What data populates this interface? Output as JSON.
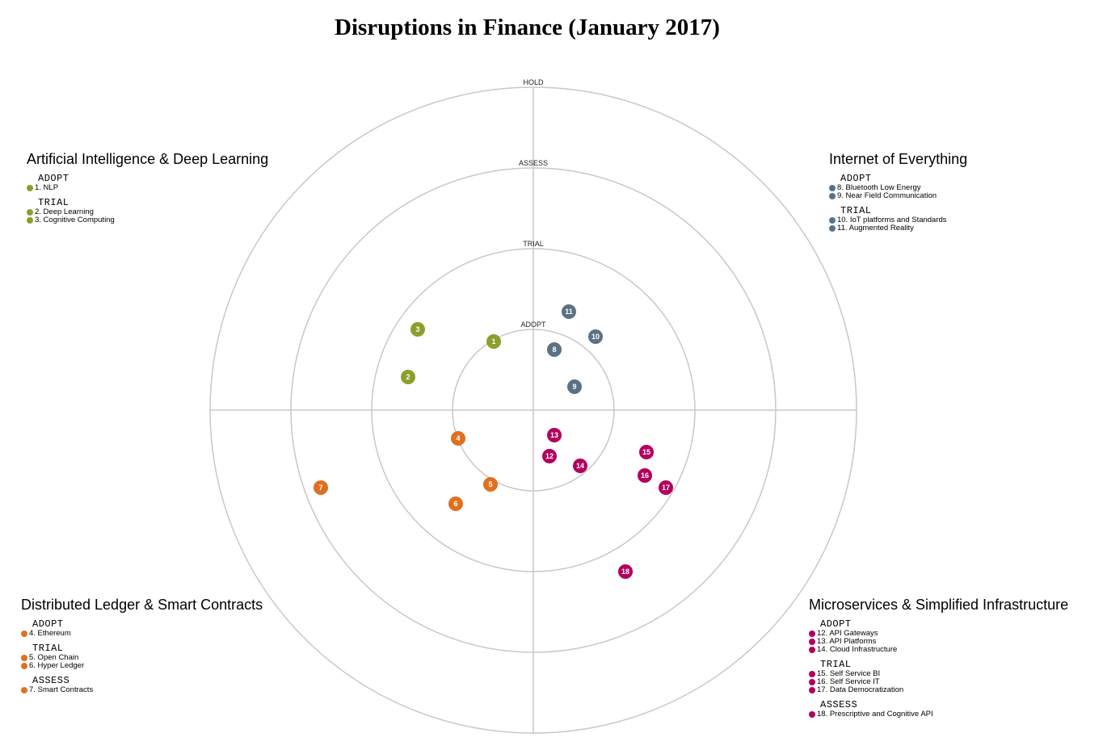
{
  "title": "Disruptions in Finance (January 2017)",
  "rings": [
    "ADOPT",
    "TRIAL",
    "ASSESS",
    "HOLD"
  ],
  "colors": {
    "ai": "#8c9f2c",
    "iot": "#5b7285",
    "ledger": "#e07020",
    "micro": "#b3005e",
    "grid": "#c8c8c8"
  },
  "quadrants": [
    {
      "title": "Artificial Intelligence & Deep Learning",
      "color": "#8c9f2c",
      "groups": [
        {
          "ring": "ADOPT",
          "items": [
            "1. NLP"
          ]
        },
        {
          "ring": "TRIAL",
          "items": [
            "2. Deep Learning",
            "3. Cognitive Computing"
          ]
        }
      ]
    },
    {
      "title": "Internet of Everything",
      "color": "#5b7285",
      "groups": [
        {
          "ring": "ADOPT",
          "items": [
            "8. Bluetooth Low Energy",
            "9. Near Field Communication"
          ]
        },
        {
          "ring": "TRIAL",
          "items": [
            "10. IoT platforms and Standards",
            "11. Augmented Reality"
          ]
        }
      ]
    },
    {
      "title": "Distributed Ledger & Smart Contracts",
      "color": "#e07020",
      "groups": [
        {
          "ring": "ADOPT",
          "items": [
            "4. Ethereum"
          ]
        },
        {
          "ring": "TRIAL",
          "items": [
            "5. Open Chain",
            "6. Hyper Ledger"
          ]
        },
        {
          "ring": "ASSESS",
          "items": [
            "7. Smart Contracts"
          ]
        }
      ]
    },
    {
      "title": "Microservices & Simplified Infrastructure",
      "color": "#b3005e",
      "groups": [
        {
          "ring": "ADOPT",
          "items": [
            "12. API Gateways",
            "13. API Platforms",
            "14. Cloud Infrastructure"
          ]
        },
        {
          "ring": "TRIAL",
          "items": [
            "15. Self Service BI",
            "16. Self Service IT",
            "17. Data Democratization"
          ]
        },
        {
          "ring": "ASSESS",
          "items": [
            "18. Prescriptive and Cognitive API"
          ]
        }
      ]
    }
  ],
  "blips": [
    {
      "label": "1",
      "quadrant": 0
    },
    {
      "label": "2",
      "quadrant": 0
    },
    {
      "label": "3",
      "quadrant": 0
    },
    {
      "label": "4",
      "quadrant": 2
    },
    {
      "label": "5",
      "quadrant": 2
    },
    {
      "label": "6",
      "quadrant": 2
    },
    {
      "label": "7",
      "quadrant": 2
    },
    {
      "label": "8",
      "quadrant": 1
    },
    {
      "label": "9",
      "quadrant": 1
    },
    {
      "label": "10",
      "quadrant": 1
    },
    {
      "label": "11",
      "quadrant": 1
    },
    {
      "label": "12",
      "quadrant": 3
    },
    {
      "label": "13",
      "quadrant": 3
    },
    {
      "label": "14",
      "quadrant": 3
    },
    {
      "label": "15",
      "quadrant": 3
    },
    {
      "label": "16",
      "quadrant": 3
    },
    {
      "label": "17",
      "quadrant": 3
    },
    {
      "label": "18",
      "quadrant": 3
    }
  ]
}
